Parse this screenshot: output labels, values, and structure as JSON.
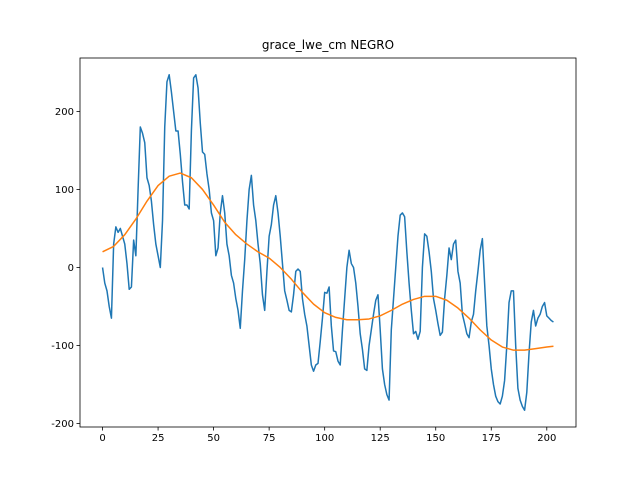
{
  "chart_data": {
    "type": "line",
    "title": "grace_lwe_cm NEGRO",
    "xlim": [
      -10.15,
      213.15
    ],
    "xticks": [
      0,
      25,
      50,
      75,
      100,
      125,
      150,
      175,
      200
    ],
    "ylim": [
      -204.5,
      268.5
    ],
    "yticks": [
      -200,
      -100,
      0,
      100,
      200
    ],
    "series": [
      {
        "color": "#1f77b4",
        "x": [
          0,
          1,
          2,
          3,
          4,
          5,
          6,
          7,
          8,
          9,
          10,
          11,
          12,
          13,
          14,
          15,
          16,
          17,
          18,
          19,
          20,
          21,
          22,
          23,
          24,
          25,
          26,
          27,
          28,
          29,
          30,
          31,
          32,
          33,
          34,
          35,
          36,
          37,
          38,
          39,
          40,
          41,
          42,
          43,
          44,
          45,
          46,
          47,
          48,
          49,
          50,
          51,
          52,
          53,
          54,
          55,
          56,
          57,
          58,
          59,
          60,
          61,
          62,
          63,
          64,
          65,
          66,
          67,
          68,
          69,
          70,
          71,
          72,
          73,
          74,
          75,
          76,
          77,
          78,
          79,
          80,
          81,
          82,
          83,
          84,
          85,
          86,
          87,
          88,
          89,
          90,
          91,
          92,
          93,
          94,
          95,
          96,
          97,
          98,
          99,
          100,
          101,
          102,
          103,
          104,
          105,
          106,
          107,
          108,
          109,
          110,
          111,
          112,
          113,
          114,
          115,
          116,
          117,
          118,
          119,
          120,
          121,
          122,
          123,
          124,
          125,
          126,
          127,
          128,
          129,
          130,
          131,
          132,
          133,
          134,
          135,
          136,
          137,
          138,
          139,
          140,
          141,
          142,
          143,
          144,
          145,
          146,
          147,
          148,
          149,
          150,
          151,
          152,
          153,
          154,
          155,
          156,
          157,
          158,
          159,
          160,
          161,
          162,
          163,
          164,
          165,
          166,
          167,
          168,
          169,
          170,
          171,
          172,
          173,
          174,
          175,
          176,
          177,
          178,
          179,
          180,
          181,
          182,
          183,
          184,
          185,
          186,
          187,
          188,
          189,
          190,
          191,
          192,
          193,
          194,
          195,
          196,
          197,
          198,
          199,
          200,
          201,
          202,
          203
        ],
        "values": [
          0,
          -20,
          -30,
          -50,
          -65,
          30,
          52,
          45,
          50,
          40,
          30,
          5,
          -28,
          -25,
          35,
          15,
          100,
          180,
          172,
          160,
          115,
          105,
          85,
          55,
          30,
          15,
          0,
          60,
          180,
          238,
          247,
          225,
          200,
          175,
          175,
          145,
          110,
          80,
          80,
          75,
          175,
          243,
          247,
          230,
          185,
          148,
          145,
          120,
          100,
          70,
          60,
          15,
          25,
          70,
          92,
          70,
          30,
          15,
          -10,
          -20,
          -40,
          -55,
          -78,
          -30,
          10,
          60,
          100,
          118,
          80,
          60,
          30,
          5,
          -35,
          -55,
          -5,
          40,
          55,
          80,
          92,
          70,
          40,
          5,
          -30,
          -42,
          -55,
          -57,
          -35,
          -5,
          -2,
          -5,
          -40,
          -60,
          -75,
          -100,
          -125,
          -133,
          -125,
          -123,
          -95,
          -65,
          -32,
          -33,
          -25,
          -75,
          -107,
          -108,
          -120,
          -125,
          -80,
          -40,
          0,
          22,
          5,
          0,
          -20,
          -50,
          -85,
          -105,
          -130,
          -132,
          -100,
          -80,
          -60,
          -42,
          -35,
          -80,
          -130,
          -150,
          -163,
          -170,
          -80,
          -40,
          0,
          40,
          67,
          70,
          65,
          20,
          -20,
          -55,
          -85,
          -82,
          -92,
          -82,
          0,
          43,
          40,
          20,
          -5,
          -40,
          -55,
          -72,
          -87,
          -83,
          -40,
          -10,
          25,
          10,
          30,
          35,
          -5,
          -20,
          -60,
          -72,
          -85,
          -90,
          -70,
          -60,
          -30,
          -5,
          22,
          37,
          -20,
          -75,
          -100,
          -130,
          -150,
          -165,
          -172,
          -175,
          -165,
          -145,
          -100,
          -45,
          -30,
          -30,
          -100,
          -155,
          -170,
          -178,
          -183,
          -160,
          -110,
          -70,
          -55,
          -75,
          -65,
          -60,
          -50,
          -45,
          -62,
          -65,
          -68,
          -70
        ]
      },
      {
        "color": "#ff7f0e",
        "x": [
          0,
          5,
          10,
          15,
          20,
          25,
          30,
          35,
          40,
          45,
          50,
          55,
          60,
          65,
          70,
          75,
          80,
          85,
          90,
          95,
          100,
          105,
          110,
          115,
          120,
          125,
          130,
          135,
          140,
          145,
          150,
          155,
          160,
          165,
          170,
          175,
          180,
          185,
          190,
          195,
          200,
          203
        ],
        "values": [
          20,
          27,
          42,
          62,
          85,
          105,
          117,
          121,
          115,
          100,
          80,
          58,
          42,
          30,
          20,
          12,
          0,
          -15,
          -32,
          -47,
          -58,
          -64,
          -67,
          -67,
          -66,
          -62,
          -55,
          -47,
          -41,
          -37,
          -37,
          -42,
          -52,
          -65,
          -80,
          -93,
          -102,
          -106,
          -106,
          -104,
          -102,
          -101
        ]
      }
    ]
  }
}
